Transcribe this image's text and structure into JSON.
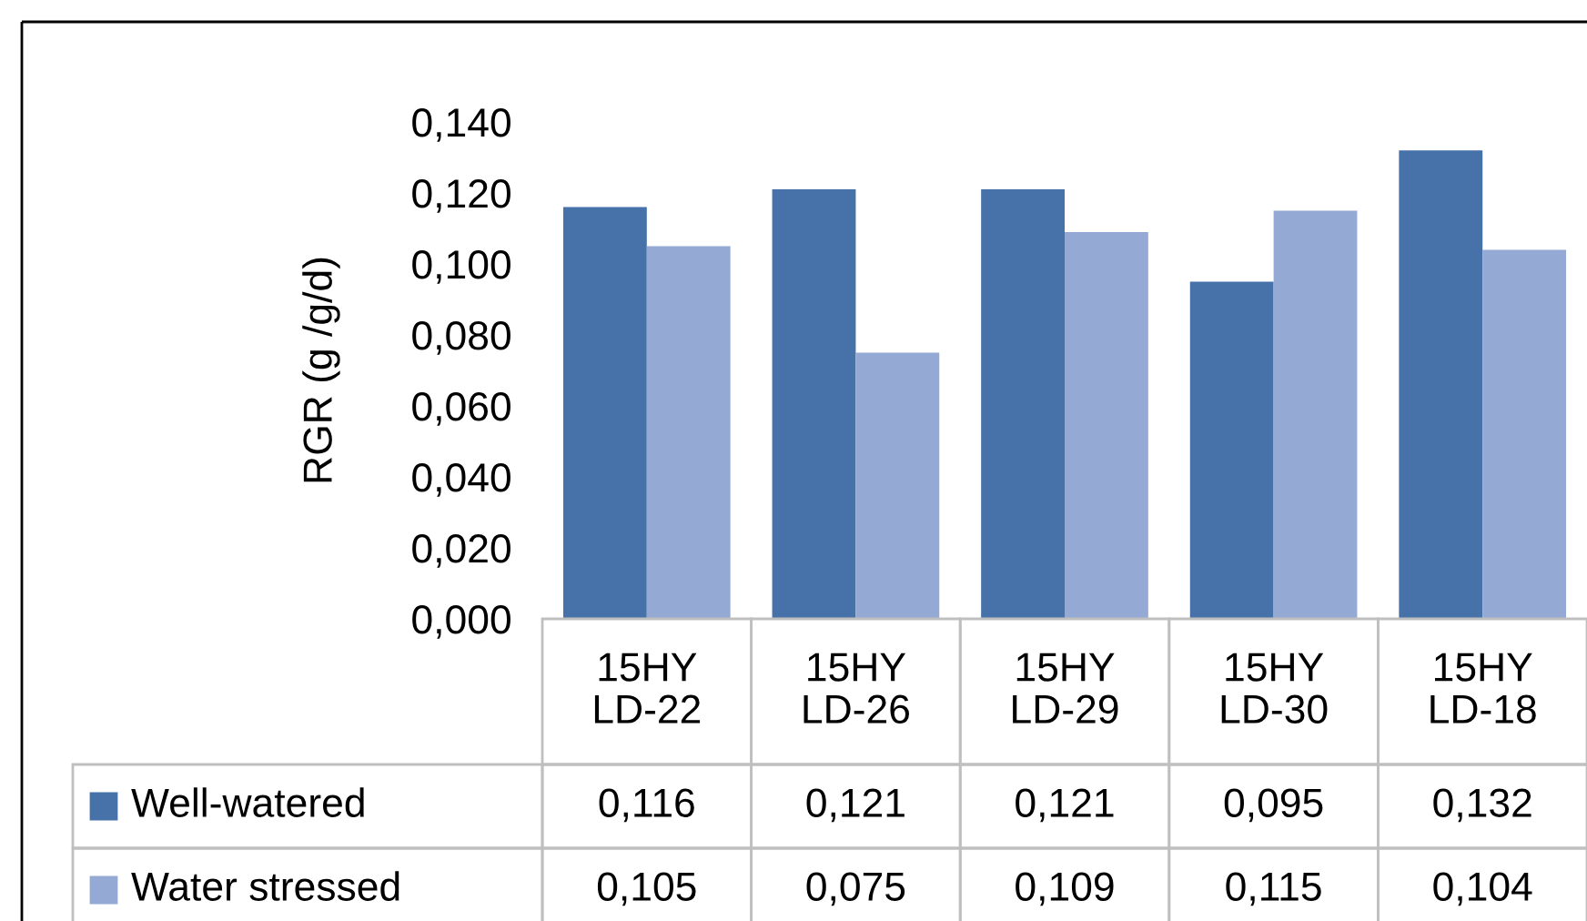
{
  "chart_data": {
    "type": "bar",
    "ylabel": "RGR (g /g/d)",
    "categories": [
      "15HY LD-22",
      "15HY LD-26",
      "15HY LD-29",
      "15HY LD-30",
      "15HY LD-18"
    ],
    "series": [
      {
        "name": "Well-watered",
        "color": "#4672a9",
        "values": [
          0.116,
          0.121,
          0.121,
          0.095,
          0.132
        ],
        "value_labels": [
          "0,116",
          "0,121",
          "0,121",
          "0,095",
          "0,132"
        ]
      },
      {
        "name": "Water stressed",
        "color": "#94aad4",
        "values": [
          0.105,
          0.075,
          0.109,
          0.115,
          0.104
        ],
        "value_labels": [
          "0,105",
          "0,075",
          "0,109",
          "0,115",
          "0,104"
        ]
      }
    ],
    "ylim": [
      0,
      0.14
    ],
    "yticks": [
      {
        "value": 0,
        "label": "0,000"
      },
      {
        "value": 0.02,
        "label": "0,020"
      },
      {
        "value": 0.04,
        "label": "0,040"
      },
      {
        "value": 0.06,
        "label": "0,060"
      },
      {
        "value": 0.08,
        "label": "0,080"
      },
      {
        "value": 0.1,
        "label": "0,100"
      },
      {
        "value": 0.12,
        "label": "0,120"
      },
      {
        "value": 0.14,
        "label": "0,140"
      }
    ],
    "grid": false,
    "legend": "bottom"
  }
}
